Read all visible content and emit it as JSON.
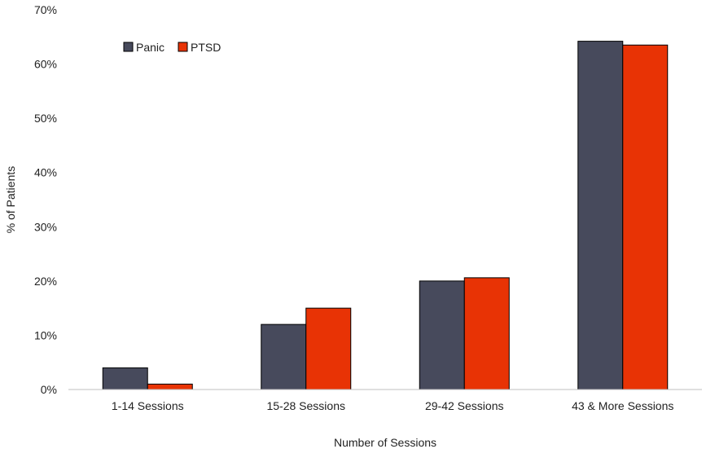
{
  "chart_data": {
    "type": "bar",
    "title": "",
    "xlabel": "Number of Sessions",
    "ylabel": "% of Patients",
    "categories": [
      "1-14 Sessions",
      "15-28 Sessions",
      "29-42 Sessions",
      "43 & More Sessions"
    ],
    "series": [
      {
        "name": "Panic",
        "color": "#474a5c",
        "values": [
          4,
          12,
          20,
          64.2
        ]
      },
      {
        "name": "PTSD",
        "color": "#e83305",
        "values": [
          1,
          15,
          20.6,
          63.5
        ]
      }
    ],
    "ylim": [
      0,
      70
    ],
    "yticks": [
      0,
      10,
      20,
      30,
      40,
      50,
      60,
      70
    ],
    "ytick_labels": [
      "0%",
      "10%",
      "20%",
      "30%",
      "40%",
      "50%",
      "60%",
      "70%"
    ],
    "grid": false,
    "legend": "top-left"
  }
}
